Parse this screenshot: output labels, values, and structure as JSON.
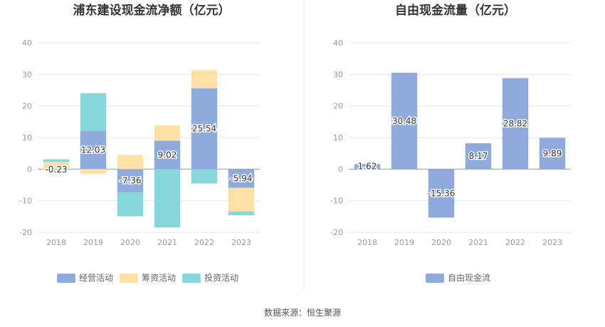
{
  "source": "数据来源：恒生聚源",
  "colors": {
    "operating": "#8faadc",
    "financing": "#ffe0a6",
    "investing": "#88d8db",
    "fcf": "#8faadc",
    "grid": "#e6e6e6",
    "axis": "#999999",
    "divider": "#eeeeee"
  },
  "chart_data": [
    {
      "type": "bar",
      "stacked": true,
      "title": "浦东建设现金流净额（亿元）",
      "categories": [
        "2018",
        "2019",
        "2020",
        "2021",
        "2022",
        "2023"
      ],
      "ylim": [
        -20,
        40
      ],
      "yticks": [
        "40",
        "30",
        "20",
        "10",
        "0",
        "-10",
        "-20"
      ],
      "ytick_values": [
        40,
        30,
        20,
        10,
        0,
        -10,
        -20
      ],
      "grid": true,
      "legend_position": "bottom",
      "series": [
        {
          "name": "经营活动",
          "values": [
            -0.23,
            12.03,
            -7.36,
            9.02,
            25.54,
            -5.94
          ],
          "labels": [
            "-0.23",
            "12.03",
            "-7.36",
            "9.02",
            "25.54",
            "-5.94"
          ]
        },
        {
          "name": "筹资活动",
          "values": [
            2.3,
            -1.5,
            4.5,
            4.8,
            5.8,
            -7.5
          ]
        },
        {
          "name": "投资活动",
          "values": [
            0.8,
            12.0,
            -7.6,
            -18.5,
            -4.6,
            -1.2
          ]
        }
      ]
    },
    {
      "type": "bar",
      "title": "自由现金流量（亿元）",
      "categories": [
        "2018",
        "2019",
        "2020",
        "2021",
        "2022",
        "2023"
      ],
      "ylim": [
        -20,
        40
      ],
      "yticks": [
        "40",
        "30",
        "20",
        "10",
        "0",
        "-10",
        "-20"
      ],
      "ytick_values": [
        40,
        30,
        20,
        10,
        0,
        -10,
        -20
      ],
      "grid": true,
      "legend_position": "bottom",
      "series": [
        {
          "name": "自由现金流",
          "values": [
            1.62,
            30.48,
            -15.36,
            8.17,
            28.82,
            9.89
          ],
          "labels": [
            "1.62",
            "30.48",
            "-15.36",
            "8.17",
            "28.82",
            "9.89"
          ]
        }
      ]
    }
  ]
}
